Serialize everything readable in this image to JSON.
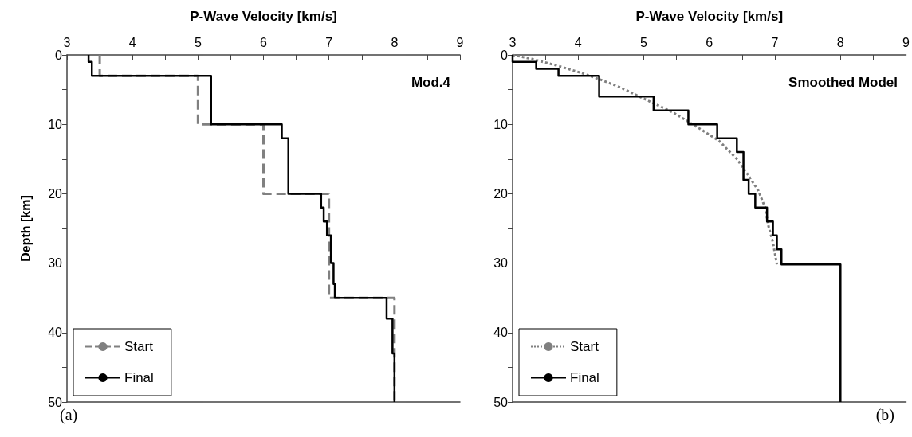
{
  "chart_data": [
    {
      "type": "line",
      "xlabel": "P-Wave Velocity [km/s]",
      "ylabel": "Depth [km]",
      "xlim": [
        3,
        9
      ],
      "xticks": [
        3,
        4,
        5,
        6,
        7,
        8,
        9
      ],
      "ylim": [
        50,
        0
      ],
      "yticks": [
        0,
        10,
        20,
        30,
        40,
        50
      ],
      "grid": false,
      "legend": "bottom left",
      "marker": "none",
      "annotations": [
        "Mod.4",
        "(a)"
      ],
      "series": [
        {
          "name": "Start",
          "color": "#808080",
          "line_style": "dashed",
          "x": [
            3.5,
            3.5,
            5,
            5,
            6,
            6,
            7,
            7,
            8,
            8
          ],
          "values": [
            0,
            3,
            3,
            10,
            10,
            20,
            20,
            35,
            35,
            50
          ]
        },
        {
          "name": "Final",
          "color": "#000000",
          "line_style": "solid",
          "x": [
            3.33,
            3.33,
            3.38,
            3.38,
            5.2,
            5.2,
            6.28,
            6.28,
            6.38,
            6.38,
            6.88,
            6.88,
            6.92,
            6.92,
            6.97,
            6.97,
            7.03,
            7.03,
            7.07,
            7.07,
            7.09,
            7.09,
            7.88,
            7.88,
            7.97,
            7.97,
            8.0,
            8.0
          ],
          "values": [
            0,
            1,
            1,
            3,
            3,
            10,
            10,
            12,
            12,
            20,
            20,
            22,
            22,
            24,
            24,
            26,
            26,
            30,
            30,
            33,
            33,
            35,
            35,
            38,
            38,
            43,
            43,
            50
          ]
        }
      ]
    },
    {
      "type": "line",
      "xlabel": "P-Wave Velocity [km/s]",
      "xlim": [
        3,
        9
      ],
      "xticks": [
        3,
        4,
        5,
        6,
        7,
        8,
        9
      ],
      "ylim": [
        50,
        0
      ],
      "yticks": [
        0,
        10,
        20,
        30,
        40,
        50
      ],
      "grid": false,
      "legend": "bottom left",
      "marker": "none",
      "annotations": [
        "Smoothed Model",
        "(b)"
      ],
      "series": [
        {
          "name": "Start",
          "color": "#808080",
          "line_style": "dotted",
          "x": [
            3.0,
            3.3,
            3.7,
            4.05,
            4.35,
            4.65,
            5.0,
            5.45,
            5.85,
            6.15,
            6.42,
            6.57,
            6.75,
            6.85,
            6.9,
            6.97,
            7.03
          ],
          "values": [
            0,
            0.6,
            1.6,
            2.6,
            3.6,
            4.7,
            6.3,
            8.3,
            10.6,
            12.4,
            15,
            17,
            19.6,
            22,
            24.6,
            27,
            30.2
          ]
        },
        {
          "name": "Final",
          "color": "#000000",
          "line_style": "solid",
          "x": [
            3,
            3,
            3.36,
            3.36,
            3.7,
            3.7,
            4.32,
            4.32,
            5.15,
            5.15,
            5.68,
            5.68,
            6.12,
            6.12,
            6.42,
            6.42,
            6.52,
            6.52,
            6.6,
            6.6,
            6.7,
            6.7,
            6.88,
            6.88,
            6.97,
            6.97,
            7.03,
            7.03,
            7.1,
            7.1,
            8,
            8
          ],
          "values": [
            0,
            1,
            1,
            2,
            2,
            3,
            3,
            6,
            6,
            8,
            8,
            10,
            10,
            12,
            12,
            14,
            14,
            18,
            18,
            20,
            20,
            22,
            22,
            24,
            24,
            26,
            26,
            28,
            28,
            30.2,
            30.2,
            50
          ]
        }
      ]
    }
  ]
}
